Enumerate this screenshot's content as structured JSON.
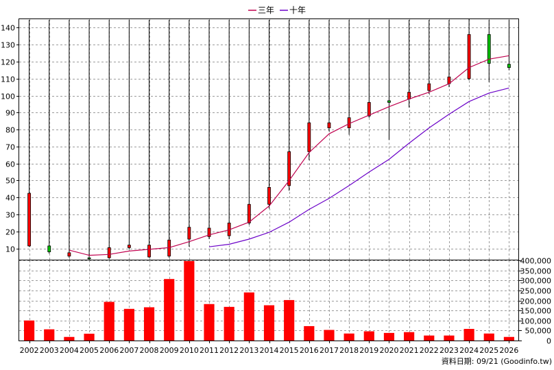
{
  "chart_data": [
    {
      "type": "candlestick",
      "legend": [
        {
          "name": "三年",
          "color": "#c0004e"
        },
        {
          "name": "十年",
          "color": "#6a00c8"
        }
      ],
      "legend_placement": "top-center",
      "grid": true,
      "ylim": [
        3,
        145
      ],
      "y_ticks": [
        10,
        20,
        30,
        40,
        50,
        60,
        70,
        80,
        90,
        100,
        110,
        120,
        130,
        140
      ],
      "categories": [
        "2002",
        "2003",
        "2004",
        "2005",
        "2006",
        "2007",
        "2008",
        "2009",
        "2010",
        "2011",
        "2012",
        "2013",
        "2014",
        "2015",
        "2016",
        "2017",
        "2018",
        "2019",
        "2020",
        "2021",
        "2022",
        "2023",
        "2024",
        "2025",
        "2026"
      ],
      "candles": [
        {
          "o": 11.5,
          "h": 44,
          "l": 11,
          "c": 42.5
        },
        {
          "o": 11.5,
          "h": 12,
          "l": 7,
          "c": 8
        },
        {
          "o": 5.5,
          "h": 8.5,
          "l": 4.5,
          "c": 7.5
        },
        {
          "o": 4.5,
          "h": 5.5,
          "l": 3.5,
          "c": 4
        },
        {
          "o": 4.5,
          "h": 12,
          "l": 4,
          "c": 10.5
        },
        {
          "o": 10.5,
          "h": 13.5,
          "l": 9.5,
          "c": 12
        },
        {
          "o": 5,
          "h": 15,
          "l": 4.5,
          "c": 12
        },
        {
          "o": 5.5,
          "h": 16,
          "l": 4.5,
          "c": 15
        },
        {
          "o": 15.5,
          "h": 24,
          "l": 11,
          "c": 22.5
        },
        {
          "o": 17,
          "h": 25,
          "l": 15.5,
          "c": 22
        },
        {
          "o": 17.5,
          "h": 27,
          "l": 15.5,
          "c": 25
        },
        {
          "o": 25,
          "h": 39.5,
          "l": 24,
          "c": 36
        },
        {
          "o": 36,
          "h": 53.5,
          "l": 33.5,
          "c": 46
        },
        {
          "o": 47,
          "h": 80,
          "l": 44,
          "c": 67
        },
        {
          "o": 67,
          "h": 85,
          "l": 62,
          "c": 84
        },
        {
          "o": 81,
          "h": 89,
          "l": 79,
          "c": 84
        },
        {
          "o": 81,
          "h": 89,
          "l": 77,
          "c": 87
        },
        {
          "o": 88,
          "h": 102,
          "l": 87,
          "c": 96
        },
        {
          "o": 97,
          "h": 100,
          "l": 74,
          "c": 96
        },
        {
          "o": 98,
          "h": 109,
          "l": 93,
          "c": 102
        },
        {
          "o": 103,
          "h": 111,
          "l": 101,
          "c": 107
        },
        {
          "o": 107,
          "h": 116,
          "l": 105,
          "c": 111
        },
        {
          "o": 110,
          "h": 145,
          "l": 109,
          "c": 136
        },
        {
          "o": 136,
          "h": 138,
          "l": 108,
          "c": 119
        },
        {
          "o": 118.5,
          "h": 121.5,
          "l": 115,
          "c": 116.5
        }
      ],
      "ma_3y": [
        null,
        null,
        9,
        6,
        6.5,
        8.5,
        9.5,
        10.5,
        14,
        18,
        21,
        25.5,
        35,
        50,
        66.5,
        77.5,
        83.5,
        88.5,
        93.5,
        98,
        102,
        107,
        116.5,
        121.5,
        123.5
      ],
      "ma_10y": [
        null,
        null,
        null,
        null,
        null,
        null,
        null,
        null,
        null,
        11,
        12.5,
        15.5,
        19.5,
        25.5,
        33,
        39.5,
        47,
        55,
        62.5,
        72,
        81,
        89,
        96.5,
        101.5,
        104.5
      ]
    },
    {
      "type": "bar",
      "color": "#ff0000",
      "ylim": [
        0,
        400000
      ],
      "y_ticks": [
        "0",
        "50,000",
        "100,000",
        "150,000",
        "200,000",
        "250,000",
        "300,000",
        "350,000",
        "400,000"
      ],
      "categories": [
        "2002",
        "2003",
        "2004",
        "2005",
        "2006",
        "2007",
        "2008",
        "2009",
        "2010",
        "2011",
        "2012",
        "2013",
        "2014",
        "2015",
        "2016",
        "2017",
        "2018",
        "2019",
        "2020",
        "2021",
        "2022",
        "2023",
        "2024",
        "2025",
        "2026"
      ],
      "values": [
        100000,
        56000,
        18000,
        34000,
        193000,
        158000,
        166000,
        307000,
        408000,
        182000,
        168000,
        240000,
        176000,
        202000,
        72000,
        53000,
        35000,
        46000,
        38000,
        42000,
        25000,
        25000,
        58000,
        35000,
        18000
      ]
    }
  ],
  "footer": "資料日期: 09/21  (Goodinfo.tw)"
}
